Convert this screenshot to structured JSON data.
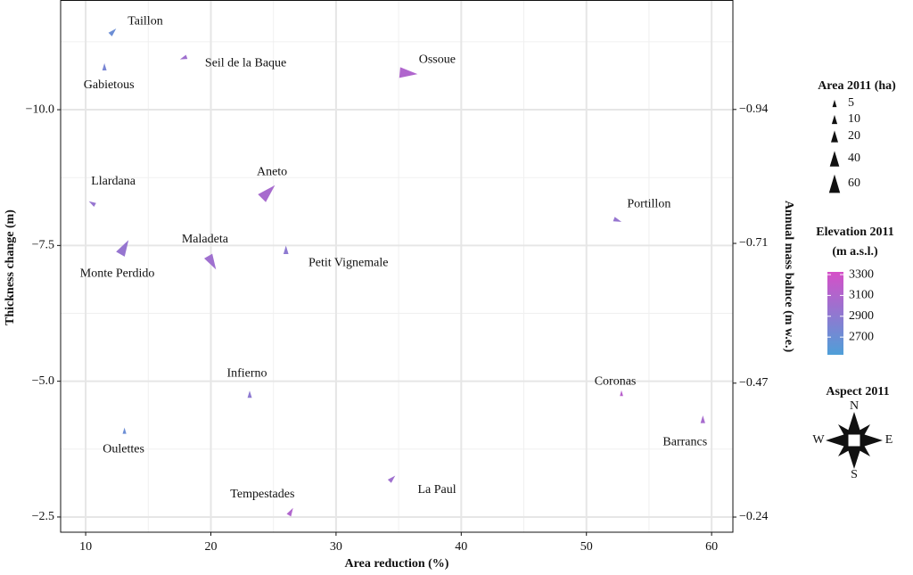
{
  "chart_data": {
    "type": "scatter",
    "x_label": "Area reduction (%)",
    "y_label": "Thickness change (m)",
    "y2_label": "Annual mass balnce (m w.e.)",
    "xlim": [
      8.0,
      61.7
    ],
    "xticks": [
      10,
      20,
      30,
      40,
      50,
      60
    ],
    "xminor": [
      15,
      25,
      35,
      45,
      55
    ],
    "ylim": [
      -12.02,
      -2.22
    ],
    "y_reversed": true,
    "yticks": [
      {
        "value": -10,
        "label": "−10.0"
      },
      {
        "value": -7.5,
        "label": "−7.5"
      },
      {
        "value": -5,
        "label": "−5.0"
      },
      {
        "value": -2.5,
        "label": "−2.5"
      }
    ],
    "yminor": [
      -11.25,
      -8.75,
      -6.25,
      -3.75
    ],
    "y2lim": [
      -1.128,
      -0.214
    ],
    "y2ticks": [
      {
        "value": -0.94,
        "label": "−0.94"
      },
      {
        "value": -0.71,
        "label": "−0.71"
      },
      {
        "value": -0.47,
        "label": "−0.47"
      },
      {
        "value": -0.24,
        "label": "−0.24"
      }
    ],
    "grid": true,
    "size_legend": {
      "title": "Area 2011 (ha)",
      "values": [
        5,
        10,
        20,
        40,
        60
      ]
    },
    "color_legend": {
      "title": [
        "Elevation 2011",
        "(m a.s.l.)"
      ],
      "ticks": [
        2700,
        2900,
        3100,
        3300
      ],
      "lim": [
        2530,
        3326
      ],
      "colors": [
        "#4f9fd8",
        "#d64fc8"
      ]
    },
    "aspect_legend": {
      "title": "Aspect 2011",
      "labels": [
        "N",
        "E",
        "S",
        "W"
      ]
    },
    "points": [
      {
        "name": "Taillon",
        "x": 12.2,
        "y": -11.44,
        "area": 8,
        "elevation": 2700,
        "aspect": 45
      },
      {
        "name": "Gabietous",
        "x": 11.5,
        "y": -10.79,
        "area": 5,
        "elevation": 2780,
        "aspect": 0
      },
      {
        "name": "Seil de la Baque",
        "x": 17.8,
        "y": -10.95,
        "area": 5,
        "elevation": 3000,
        "aspect": 250
      },
      {
        "name": "Ossoue",
        "x": 35.8,
        "y": -10.67,
        "area": 55,
        "elevation": 3100,
        "aspect": 95
      },
      {
        "name": "Llardana",
        "x": 10.5,
        "y": -8.28,
        "area": 5,
        "elevation": 2950,
        "aspect": 300
      },
      {
        "name": "Aneto",
        "x": 24.6,
        "y": -8.49,
        "area": 60,
        "elevation": 3050,
        "aspect": 45
      },
      {
        "name": "Portillon",
        "x": 52.5,
        "y": -7.96,
        "area": 7,
        "elevation": 2950,
        "aspect": 110
      },
      {
        "name": "Monte Perdido",
        "x": 13.1,
        "y": -7.47,
        "area": 45,
        "elevation": 2950,
        "aspect": 30
      },
      {
        "name": "Maladeta",
        "x": 20.1,
        "y": -7.18,
        "area": 40,
        "elevation": 3000,
        "aspect": 150
      },
      {
        "name": "Petit Vignemale",
        "x": 26.0,
        "y": -7.42,
        "area": 8,
        "elevation": 2900,
        "aspect": 0
      },
      {
        "name": "Infierno",
        "x": 23.1,
        "y": -4.76,
        "area": 5,
        "elevation": 2900,
        "aspect": 0
      },
      {
        "name": "Coronas",
        "x": 52.8,
        "y": -4.78,
        "area": 2,
        "elevation": 3150,
        "aspect": 0
      },
      {
        "name": "Barrancs",
        "x": 59.3,
        "y": -4.3,
        "area": 6,
        "elevation": 3050,
        "aspect": 0
      },
      {
        "name": "Oulettes",
        "x": 13.1,
        "y": -4.09,
        "area": 3,
        "elevation": 2700,
        "aspect": 0
      },
      {
        "name": "La Paul",
        "x": 34.5,
        "y": -3.21,
        "area": 7,
        "elevation": 3000,
        "aspect": 45
      },
      {
        "name": "Tempestades",
        "x": 26.4,
        "y": -2.6,
        "area": 8,
        "elevation": 3100,
        "aspect": 30
      }
    ]
  }
}
